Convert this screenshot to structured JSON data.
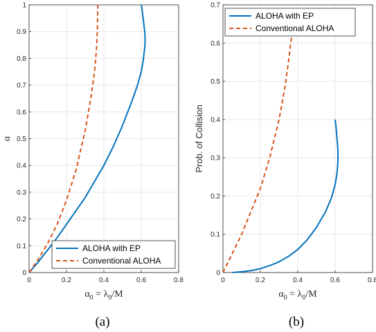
{
  "colors": {
    "aloha_ep": "#0072BD",
    "conventional": "#D95319",
    "grid": "#e6e6e6",
    "axis": "#262626"
  },
  "chart_data": [
    {
      "type": "line",
      "caption": "(a)",
      "xlabel_parts": {
        "a": "α",
        "sub0": "0",
        "mid": " = λ",
        "sub1": "0",
        "tail": "/M"
      },
      "ylabel": "α",
      "xlim": [
        0,
        0.8
      ],
      "ylim": [
        0,
        1
      ],
      "xticks": [
        "0",
        "0.2",
        "0.4",
        "0.6",
        "0.8"
      ],
      "yticks": [
        "0",
        "0.1",
        "0.2",
        "0.3",
        "0.4",
        "0.5",
        "0.6",
        "0.7",
        "0.8",
        "0.9",
        "1"
      ],
      "grid": true,
      "legend_position": "bottom-right",
      "series": [
        {
          "name": "ALOHA with EP",
          "style": "solid",
          "x": [
            0,
            0.05,
            0.1,
            0.15,
            0.2,
            0.25,
            0.3,
            0.35,
            0.4,
            0.45,
            0.5,
            0.55,
            0.58,
            0.6,
            0.61,
            0.615,
            0.62,
            0.62,
            0.615,
            0.61,
            0.605,
            0.6
          ],
          "y": [
            0,
            0.04,
            0.085,
            0.13,
            0.18,
            0.23,
            0.28,
            0.34,
            0.4,
            0.47,
            0.55,
            0.64,
            0.7,
            0.75,
            0.79,
            0.82,
            0.85,
            0.89,
            0.92,
            0.95,
            0.98,
            1.0
          ]
        },
        {
          "name": "Conventional ALOHA",
          "style": "dashed",
          "x": [
            0,
            0.05,
            0.1,
            0.15,
            0.2,
            0.25,
            0.3,
            0.33,
            0.35,
            0.36,
            0.365,
            0.368
          ],
          "y": [
            0,
            0.05,
            0.11,
            0.18,
            0.27,
            0.38,
            0.53,
            0.65,
            0.75,
            0.83,
            0.9,
            1.0
          ]
        }
      ]
    },
    {
      "type": "line",
      "caption": "(b)",
      "xlabel_parts": {
        "a": "α",
        "sub0": "0",
        "mid": " = λ",
        "sub1": "0",
        "tail": "/M"
      },
      "ylabel": "Prob. of Collision",
      "xlim": [
        0,
        0.8
      ],
      "ylim": [
        0,
        0.7
      ],
      "xticks": [
        "0",
        "0.2",
        "0.4",
        "0.6",
        "0.8"
      ],
      "yticks": [
        "0",
        "0.1",
        "0.2",
        "0.3",
        "0.4",
        "0.5",
        "0.6",
        "0.7"
      ],
      "grid": true,
      "legend_position": "top-left",
      "series": [
        {
          "name": "ALOHA with EP",
          "style": "solid",
          "x": [
            0.05,
            0.1,
            0.15,
            0.2,
            0.25,
            0.3,
            0.35,
            0.4,
            0.45,
            0.5,
            0.55,
            0.58,
            0.6,
            0.61,
            0.615,
            0.615,
            0.61,
            0.605,
            0.6
          ],
          "y": [
            0.0,
            0.002,
            0.005,
            0.01,
            0.018,
            0.028,
            0.042,
            0.06,
            0.085,
            0.118,
            0.16,
            0.195,
            0.23,
            0.26,
            0.29,
            0.32,
            0.35,
            0.38,
            0.4
          ]
        },
        {
          "name": "Conventional ALOHA",
          "style": "dashed",
          "x": [
            0,
            0.05,
            0.1,
            0.15,
            0.2,
            0.25,
            0.3,
            0.33,
            0.35,
            0.365,
            0.37
          ],
          "y": [
            0,
            0.05,
            0.1,
            0.16,
            0.22,
            0.3,
            0.4,
            0.48,
            0.55,
            0.61,
            0.64
          ]
        }
      ]
    }
  ]
}
